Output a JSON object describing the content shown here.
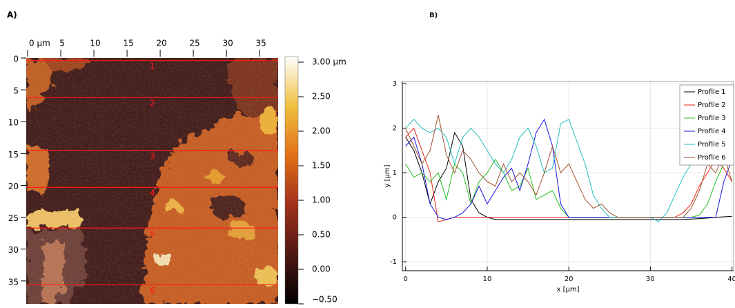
{
  "chart_data": [
    {
      "type": "image",
      "panel_label": "A)",
      "xlim": [
        0,
        38
      ],
      "xticks": [
        {
          "value": 0,
          "label": "0 µm"
        },
        5,
        10,
        15,
        20,
        25,
        30,
        35
      ],
      "ylim": [
        0,
        38.6
      ],
      "yticks": [
        0,
        5,
        10,
        15,
        20,
        25,
        30,
        35
      ],
      "colorbar": {
        "lim": [
          -0.5,
          3.08
        ],
        "ticks": [
          {
            "value": 3,
            "label": "3.00 µm"
          },
          {
            "value": 2.5,
            "label": "2.50"
          },
          {
            "value": 2,
            "label": "2.00"
          },
          {
            "value": 1.5,
            "label": "1.50"
          },
          {
            "value": 1,
            "label": "1.00"
          },
          {
            "value": 0.5,
            "label": "0.50"
          },
          {
            "value": 0,
            "label": "0.00"
          },
          {
            "value": -0.5,
            "label": "−0.50"
          }
        ]
      },
      "profile_color": "#ff1a1a",
      "profiles": [
        {
          "label": "1",
          "y": 0.4
        },
        {
          "label": "2",
          "y": 6.2
        },
        {
          "label": "3",
          "y": 14.5
        },
        {
          "label": "4",
          "y": 20.3
        },
        {
          "label": "5",
          "y": 26.7
        },
        {
          "label": "6",
          "y": 35.6
        }
      ]
    },
    {
      "type": "line",
      "panel_label": "B)",
      "x_label": "x [µm]",
      "y_label": "y [µm]",
      "xlim": [
        -0.4,
        40.2
      ],
      "xticks": [
        0,
        10,
        20,
        30,
        40
      ],
      "ylim": [
        -1.2,
        3.05
      ],
      "yticks": [
        -1,
        0,
        1,
        2,
        3
      ],
      "grid": true,
      "legend": "top-right",
      "x": [
        0,
        1,
        2,
        3,
        4,
        5,
        6,
        7,
        8,
        9,
        10,
        11,
        12,
        13,
        14,
        15,
        16,
        17,
        18,
        19,
        20,
        21,
        22,
        23,
        24,
        25,
        26,
        27,
        28,
        29,
        30,
        31,
        32,
        33,
        34,
        35,
        36,
        37,
        38,
        39,
        40
      ],
      "series": [
        {
          "name": "Profile 1",
          "color": "#000000",
          "values": [
            1.8,
            1.5,
            1.0,
            0.3,
            0.8,
            1.1,
            1.9,
            1.6,
            0.4,
            0.1,
            0,
            -0.05,
            -0.05,
            -0.05,
            -0.05,
            -0.05,
            -0.05,
            -0.05,
            -0.05,
            -0.05,
            -0.05,
            -0.05,
            -0.05,
            -0.05,
            -0.05,
            -0.05,
            -0.05,
            -0.05,
            -0.05,
            -0.05,
            -0.05,
            -0.05,
            -0.05,
            -0.05,
            -0.05,
            -0.04,
            -0.03,
            -0.02,
            0,
            0.01,
            0.02
          ]
        },
        {
          "name": "Profile 2",
          "color": "#e8241c",
          "values": [
            1.8,
            2.0,
            1.5,
            1.0,
            -0.1,
            -0.05,
            0,
            0,
            0,
            0,
            0,
            0,
            0,
            0,
            0,
            0,
            0,
            0,
            0,
            0,
            0,
            0,
            0,
            0,
            0,
            0,
            0,
            0,
            0,
            0,
            0,
            0,
            0,
            0,
            0.1,
            0.3,
            0.7,
            1.0,
            1.3,
            1.1,
            0.8
          ]
        },
        {
          "name": "Profile 3",
          "color": "#22c022",
          "values": [
            1.2,
            0.9,
            1.0,
            0.8,
            1.0,
            0.4,
            1.2,
            1.0,
            0.3,
            0.8,
            1.0,
            1.3,
            1.0,
            0.6,
            0.7,
            1.1,
            0.4,
            0.5,
            0.6,
            0.2,
            0,
            0,
            0,
            0,
            0,
            0,
            0,
            0,
            0,
            0,
            0,
            0,
            0,
            0,
            0,
            0,
            0.05,
            0.3,
            0.8,
            1.2,
            2.5
          ]
        },
        {
          "name": "Profile 4",
          "color": "#1414e0",
          "values": [
            1.6,
            1.8,
            1.2,
            0.3,
            0,
            -0.05,
            0,
            0.1,
            0.3,
            0.7,
            0.3,
            0.6,
            0.9,
            1.1,
            0.6,
            1.2,
            1.9,
            2.2,
            1.6,
            0.3,
            0,
            0,
            0,
            0,
            0,
            0,
            0,
            0,
            0,
            0,
            0,
            0,
            0,
            0,
            0,
            0,
            0,
            0,
            0,
            0.8,
            1.3
          ]
        },
        {
          "name": "Profile 5",
          "color": "#22bcbc",
          "values": [
            2.0,
            2.2,
            2.0,
            1.9,
            2.0,
            1.8,
            1.2,
            1.8,
            2.0,
            1.8,
            1.5,
            1.2,
            1.0,
            1.3,
            1.8,
            2.0,
            1.6,
            1.0,
            1.1,
            2.1,
            2.2,
            1.7,
            1.2,
            0.5,
            0.2,
            0,
            0,
            0,
            0,
            0,
            0,
            -0.1,
            0.1,
            0.5,
            0.9,
            1.2,
            1.5,
            1.7,
            1.6,
            1.8,
            1.9
          ]
        },
        {
          "name": "Profile 6",
          "color": "#a0522d",
          "values": [
            2.0,
            1.6,
            1.2,
            1.5,
            2.3,
            1.4,
            1.0,
            1.5,
            1.3,
            1.0,
            0.8,
            0.7,
            1.2,
            0.8,
            1.0,
            0.8,
            0.5,
            1.0,
            1.6,
            1.0,
            1.2,
            0.8,
            0.4,
            0.2,
            0.3,
            0.1,
            0,
            0,
            0,
            0,
            0,
            0,
            0,
            0,
            0,
            0.2,
            0.6,
            1.2,
            1.0,
            1.4,
            0.8
          ]
        }
      ]
    }
  ]
}
